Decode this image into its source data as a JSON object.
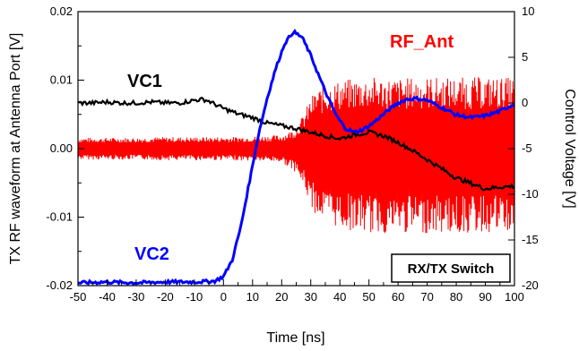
{
  "chart_data": {
    "type": "line",
    "title": "",
    "xlabel": "Time [ns]",
    "ylabel_left": "TX RF waveform at Antenna Port [V]",
    "ylabel_right": "Control Voltage [V]",
    "xlim": [
      -50,
      100
    ],
    "ylim_left": [
      -0.02,
      0.02
    ],
    "ylim_right": [
      -20,
      10
    ],
    "x_ticks": [
      "-50",
      "-40",
      "-30",
      "-20",
      "-10",
      "0",
      "10",
      "20",
      "30",
      "40",
      "50",
      "60",
      "70",
      "80",
      "90",
      "100"
    ],
    "y_left_ticks": [
      "0.02",
      "0.01",
      "0.00",
      "-0.01",
      "-0.02"
    ],
    "y_right_ticks": [
      "10",
      "5",
      "0",
      "-5",
      "-10",
      "-15",
      "-20"
    ],
    "grid": false,
    "annotation_box": "RX/TX Switch",
    "series": [
      {
        "name": "VC1",
        "axis": "right",
        "color": "#000000",
        "x": [
          -50,
          -45,
          -40,
          -35,
          -30,
          -25,
          -20,
          -15,
          -10,
          -7,
          -5,
          -2,
          0,
          5,
          10,
          15,
          20,
          25,
          30,
          35,
          40,
          45,
          50,
          55,
          60,
          65,
          70,
          75,
          80,
          85,
          90,
          95,
          100
        ],
        "values": [
          0,
          0,
          0.1,
          0,
          0,
          0.1,
          0,
          0,
          0.3,
          0.4,
          0.2,
          -0.3,
          -0.6,
          -1.2,
          -1.6,
          -2.2,
          -2.5,
          -2.8,
          -3.2,
          -3.6,
          -3.9,
          -3.5,
          -3.2,
          -3.6,
          -4.3,
          -5.2,
          -6.2,
          -7.2,
          -8.2,
          -8.8,
          -9.4,
          -9.2,
          -9.1
        ]
      },
      {
        "name": "VC2",
        "axis": "right",
        "color": "#0000ff",
        "x": [
          -50,
          -40,
          -30,
          -20,
          -10,
          -3,
          0,
          3,
          6,
          9,
          12,
          15,
          18,
          21,
          24,
          27,
          30,
          33,
          36,
          39,
          42,
          45,
          48,
          51,
          54,
          57,
          60,
          63,
          66,
          70,
          75,
          80,
          85,
          90,
          95,
          100
        ],
        "values": [
          -19.7,
          -19.6,
          -19.7,
          -19.6,
          -19.6,
          -19.5,
          -19,
          -17.2,
          -13.5,
          -8.5,
          -3.5,
          0.5,
          3.8,
          6.5,
          7.8,
          7.2,
          5.2,
          2.8,
          0.5,
          -1.5,
          -2.8,
          -3.2,
          -2.9,
          -2.3,
          -1.5,
          -0.7,
          0,
          0.4,
          0.5,
          0.3,
          -0.5,
          -1.3,
          -1.6,
          -1.4,
          -0.9,
          -0.1
        ]
      },
      {
        "name": "RF_Ant",
        "axis": "left",
        "color": "#ff0000",
        "envelope_x": [
          -50,
          -40,
          -30,
          -20,
          -10,
          0,
          10,
          20,
          25,
          28,
          30,
          32,
          35,
          40,
          50,
          60,
          70,
          80,
          90,
          100
        ],
        "envelope_upper": [
          0.0016,
          0.0016,
          0.0016,
          0.0017,
          0.0017,
          0.0017,
          0.0018,
          0.002,
          0.003,
          0.0055,
          0.0075,
          0.0087,
          0.0094,
          0.01,
          0.0105,
          0.0103,
          0.0105,
          0.0104,
          0.0105,
          0.0104
        ],
        "envelope_lower": [
          -0.0016,
          -0.0016,
          -0.0016,
          -0.0017,
          -0.0017,
          -0.0017,
          -0.0018,
          -0.002,
          -0.0035,
          -0.006,
          -0.0085,
          -0.0098,
          -0.0108,
          -0.0117,
          -0.0125,
          -0.0125,
          -0.0124,
          -0.0125,
          -0.0124,
          -0.0125
        ]
      }
    ]
  },
  "colors": {
    "vc1": "#000000",
    "vc2": "#0000ff",
    "rf": "#ff0000"
  }
}
